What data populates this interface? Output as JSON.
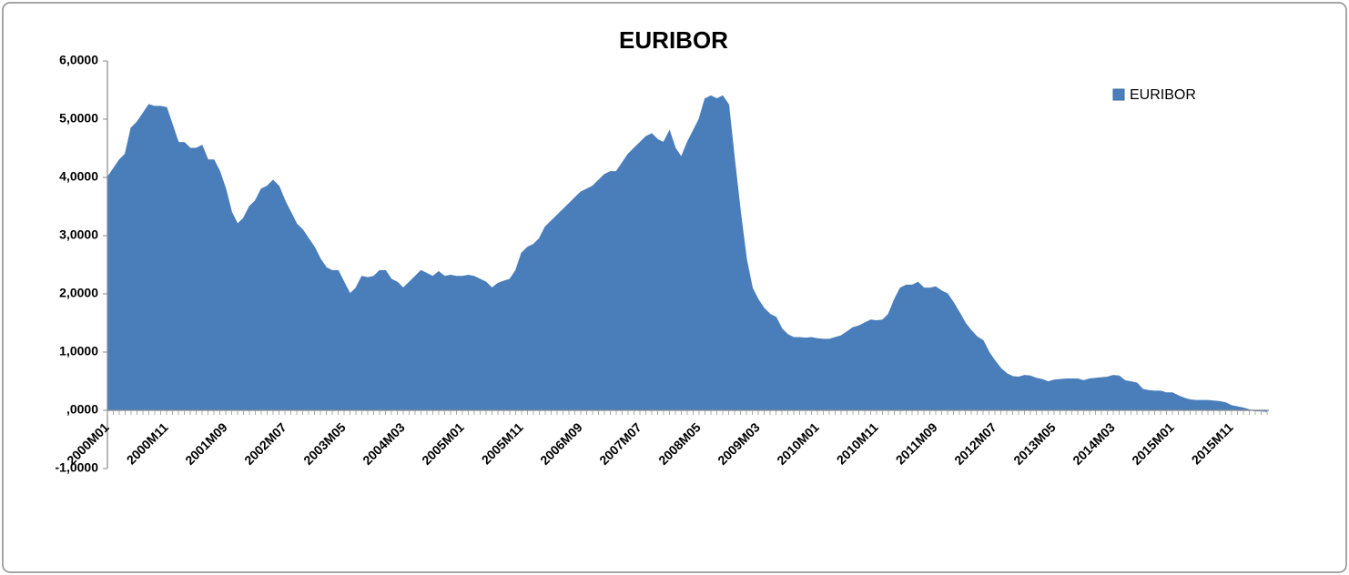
{
  "chart_data": {
    "type": "area",
    "title": "EURIBOR",
    "categories": [
      "2000M01",
      null,
      null,
      null,
      null,
      null,
      null,
      null,
      null,
      null,
      "2000M11",
      null,
      null,
      null,
      null,
      null,
      null,
      null,
      null,
      null,
      "2001M09",
      null,
      null,
      null,
      null,
      null,
      null,
      null,
      null,
      null,
      "2002M07",
      null,
      null,
      null,
      null,
      null,
      null,
      null,
      null,
      null,
      "2003M05",
      null,
      null,
      null,
      null,
      null,
      null,
      null,
      null,
      null,
      "2004M03",
      null,
      null,
      null,
      null,
      null,
      null,
      null,
      null,
      null,
      "2005M01",
      null,
      null,
      null,
      null,
      null,
      null,
      null,
      null,
      null,
      "2005M11",
      null,
      null,
      null,
      null,
      null,
      null,
      null,
      null,
      null,
      "2006M09",
      null,
      null,
      null,
      null,
      null,
      null,
      null,
      null,
      null,
      "2007M07",
      null,
      null,
      null,
      null,
      null,
      null,
      null,
      null,
      null,
      "2008M05",
      null,
      null,
      null,
      null,
      null,
      null,
      null,
      null,
      null,
      "2009M03",
      null,
      null,
      null,
      null,
      null,
      null,
      null,
      null,
      null,
      "2010M01",
      null,
      null,
      null,
      null,
      null,
      null,
      null,
      null,
      null,
      "2010M11",
      null,
      null,
      null,
      null,
      null,
      null,
      null,
      null,
      null,
      "2011M09",
      null,
      null,
      null,
      null,
      null,
      null,
      null,
      null,
      null,
      "2012M07",
      null,
      null,
      null,
      null,
      null,
      null,
      null,
      null,
      null,
      "2013M05",
      null,
      null,
      null,
      null,
      null,
      null,
      null,
      null,
      null,
      "2014M03",
      null,
      null,
      null,
      null,
      null,
      null,
      null,
      null,
      null,
      "2015M01",
      null,
      null,
      null,
      null,
      null,
      null,
      null,
      null,
      null,
      "2015M11",
      null,
      null,
      null,
      null,
      null,
      null
    ],
    "series": [
      {
        "name": "EURIBOR",
        "color": "#4a7ebb",
        "values": [
          4.0,
          4.15,
          4.3,
          4.4,
          4.85,
          4.95,
          5.1,
          5.25,
          5.22,
          5.22,
          5.2,
          4.9,
          4.6,
          4.6,
          4.5,
          4.5,
          4.55,
          4.3,
          4.3,
          4.1,
          3.8,
          3.4,
          3.2,
          3.3,
          3.5,
          3.6,
          3.8,
          3.85,
          3.95,
          3.85,
          3.6,
          3.4,
          3.2,
          3.1,
          2.95,
          2.8,
          2.6,
          2.45,
          2.4,
          2.4,
          2.2,
          2.0,
          2.1,
          2.3,
          2.28,
          2.3,
          2.4,
          2.4,
          2.25,
          2.2,
          2.1,
          2.2,
          2.3,
          2.4,
          2.35,
          2.3,
          2.38,
          2.3,
          2.32,
          2.3,
          2.3,
          2.32,
          2.3,
          2.25,
          2.2,
          2.1,
          2.18,
          2.22,
          2.25,
          2.4,
          2.7,
          2.8,
          2.85,
          2.95,
          3.15,
          3.25,
          3.35,
          3.45,
          3.55,
          3.65,
          3.75,
          3.8,
          3.85,
          3.95,
          4.05,
          4.1,
          4.1,
          4.25,
          4.4,
          4.5,
          4.6,
          4.7,
          4.75,
          4.65,
          4.6,
          4.8,
          4.5,
          4.35,
          4.6,
          4.8,
          5.0,
          5.35,
          5.4,
          5.35,
          5.4,
          5.25,
          4.3,
          3.4,
          2.6,
          2.1,
          1.9,
          1.75,
          1.65,
          1.6,
          1.4,
          1.3,
          1.25,
          1.25,
          1.24,
          1.25,
          1.23,
          1.22,
          1.22,
          1.25,
          1.28,
          1.35,
          1.42,
          1.45,
          1.5,
          1.55,
          1.54,
          1.55,
          1.65,
          1.9,
          2.1,
          2.15,
          2.15,
          2.2,
          2.1,
          2.1,
          2.12,
          2.05,
          2.0,
          1.85,
          1.68,
          1.5,
          1.37,
          1.26,
          1.2,
          1.0,
          0.85,
          0.72,
          0.63,
          0.58,
          0.57,
          0.6,
          0.59,
          0.55,
          0.53,
          0.49,
          0.52,
          0.53,
          0.54,
          0.54,
          0.54,
          0.51,
          0.54,
          0.55,
          0.56,
          0.57,
          0.6,
          0.59,
          0.51,
          0.49,
          0.47,
          0.36,
          0.34,
          0.33,
          0.33,
          0.3,
          0.3,
          0.25,
          0.21,
          0.18,
          0.17,
          0.17,
          0.17,
          0.16,
          0.15,
          0.13,
          0.08,
          0.06,
          0.04,
          0.01,
          -0.01,
          -0.01,
          -0.02
        ]
      }
    ],
    "ylim": [
      -1,
      6
    ],
    "yticks": [
      {
        "value": -1,
        "label": "-1,0000"
      },
      {
        "value": 0,
        "label": ",0000"
      },
      {
        "value": 1,
        "label": "1,0000"
      },
      {
        "value": 2,
        "label": "2,0000"
      },
      {
        "value": 3,
        "label": "3,0000"
      },
      {
        "value": 4,
        "label": "4,0000"
      },
      {
        "value": 5,
        "label": "5,0000"
      },
      {
        "value": 6,
        "label": "6,0000"
      }
    ],
    "legend": "top-right"
  }
}
